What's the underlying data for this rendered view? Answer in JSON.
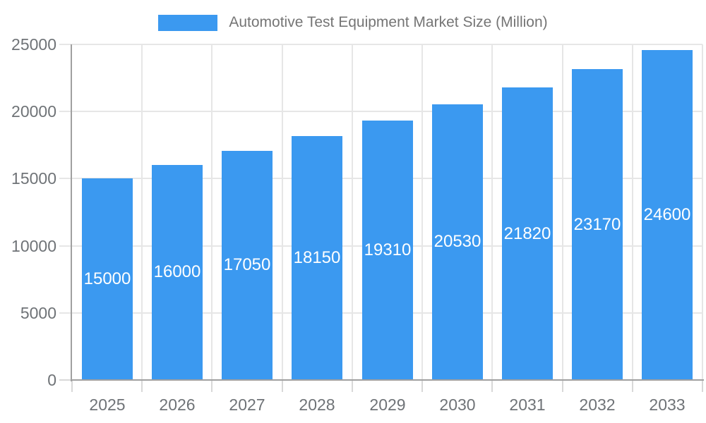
{
  "chart_data": {
    "type": "bar",
    "title": "Automotive Test Equipment Market Size (Million)",
    "legend": [
      "Automotive Test Equipment Market Size (Million)"
    ],
    "legend_position": "top-center",
    "categories": [
      "2025",
      "2026",
      "2027",
      "2028",
      "2029",
      "2030",
      "2031",
      "2032",
      "2033"
    ],
    "values": [
      15000,
      16000,
      17050,
      18150,
      19310,
      20530,
      21820,
      23170,
      24600
    ],
    "xlabel": "",
    "ylabel": "",
    "ylim": [
      0,
      25000
    ],
    "yticks": [
      0,
      5000,
      10000,
      15000,
      20000,
      25000
    ],
    "grid": true,
    "value_labels_inside_bars": true,
    "colors": {
      "bar": "#3B99F0",
      "value_label": "#FFFFFF",
      "axis_line": "#A0A0A0",
      "gridline": "#E6E6E6",
      "tick": "#D8D8D8",
      "tick_label": "#6F7377",
      "legend_text": "#757575",
      "background": "#FFFFFF"
    }
  }
}
